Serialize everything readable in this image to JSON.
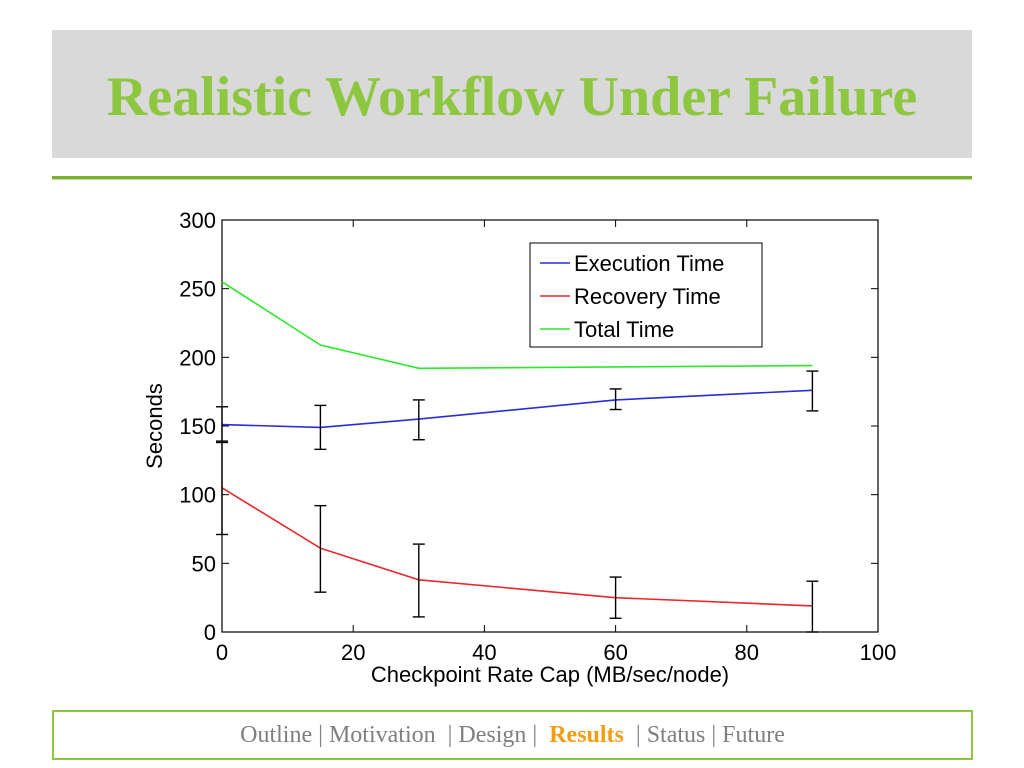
{
  "slide": {
    "title": "Realistic Workflow Under Failure"
  },
  "nav": {
    "items": [
      {
        "label": "Outline",
        "active": false
      },
      {
        "label": "| Motivation ",
        "active": false
      },
      {
        "label": "| Design | ",
        "active": false
      },
      {
        "label": "Results",
        "active": true
      },
      {
        "label": " | Status",
        "active": false
      },
      {
        "label": "| Future",
        "active": false
      }
    ]
  },
  "chart_data": {
    "type": "line",
    "xlabel": "Checkpoint Rate Cap (MB/sec/node)",
    "ylabel": "Seconds",
    "xlim": [
      0,
      100
    ],
    "ylim": [
      0,
      300
    ],
    "xticks": [
      0,
      20,
      40,
      60,
      80,
      100
    ],
    "yticks": [
      0,
      50,
      100,
      150,
      200,
      250,
      300
    ],
    "grid": false,
    "legend": "top-right",
    "x": [
      0,
      15,
      30,
      60,
      90
    ],
    "series": [
      {
        "name": "Execution Time",
        "color": "#2b2bd9",
        "values": [
          151,
          149,
          155,
          169,
          176
        ],
        "err_low": [
          138,
          133,
          140,
          162,
          161
        ],
        "err_high": [
          164,
          165,
          169,
          177,
          190
        ]
      },
      {
        "name": "Recovery Time",
        "color": "#e8262b",
        "values": [
          105,
          61,
          38,
          25,
          19
        ],
        "err_low": [
          71,
          29,
          11,
          10,
          0
        ],
        "err_high": [
          139,
          92,
          64,
          40,
          37
        ]
      },
      {
        "name": "Total Time",
        "color": "#2be82b",
        "values": [
          255,
          209,
          192,
          193,
          194
        ]
      }
    ]
  }
}
